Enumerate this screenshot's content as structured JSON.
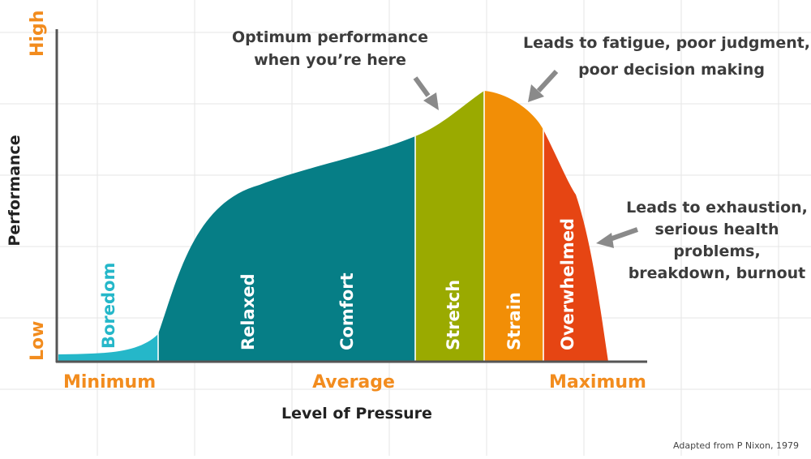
{
  "y_axis": {
    "title": "Performance",
    "high_label": "High",
    "low_label": "Low"
  },
  "x_axis": {
    "title": "Level of Pressure",
    "min_label": "Minimum",
    "mid_label": "Average",
    "max_label": "Maximum"
  },
  "zones": [
    {
      "label": "Boredom",
      "color": "#25b7c9",
      "text_color": "#25b7c9"
    },
    {
      "label": "Relaxed",
      "color": "#067e86",
      "text_color": "#ffffff"
    },
    {
      "label": "Comfort",
      "color": "#067e86",
      "text_color": "#ffffff"
    },
    {
      "label": "Stretch",
      "color": "#9aaa00",
      "text_color": "#ffffff"
    },
    {
      "label": "Strain",
      "color": "#f28e06",
      "text_color": "#ffffff"
    },
    {
      "label": "Overwhelmed",
      "color": "#e64513",
      "text_color": "#ffffff"
    }
  ],
  "annotations": {
    "optimum": {
      "lines": [
        "Optimum performance",
        "when you’re here"
      ]
    },
    "fatigue": {
      "lines": [
        "Leads to fatigue, poor judgment,",
        "poor decision making"
      ]
    },
    "exhaustion": {
      "lines": [
        "Leads to exhaustion,",
        "serious health",
        "problems,",
        "breakdown, burnout"
      ]
    }
  },
  "credit": "Adapted from P Nixon, 1979",
  "colors": {
    "accent": "#f28c1e",
    "arrow": "#8a8a8a",
    "grid": "#e6e6e6",
    "axis": "#555555"
  }
}
